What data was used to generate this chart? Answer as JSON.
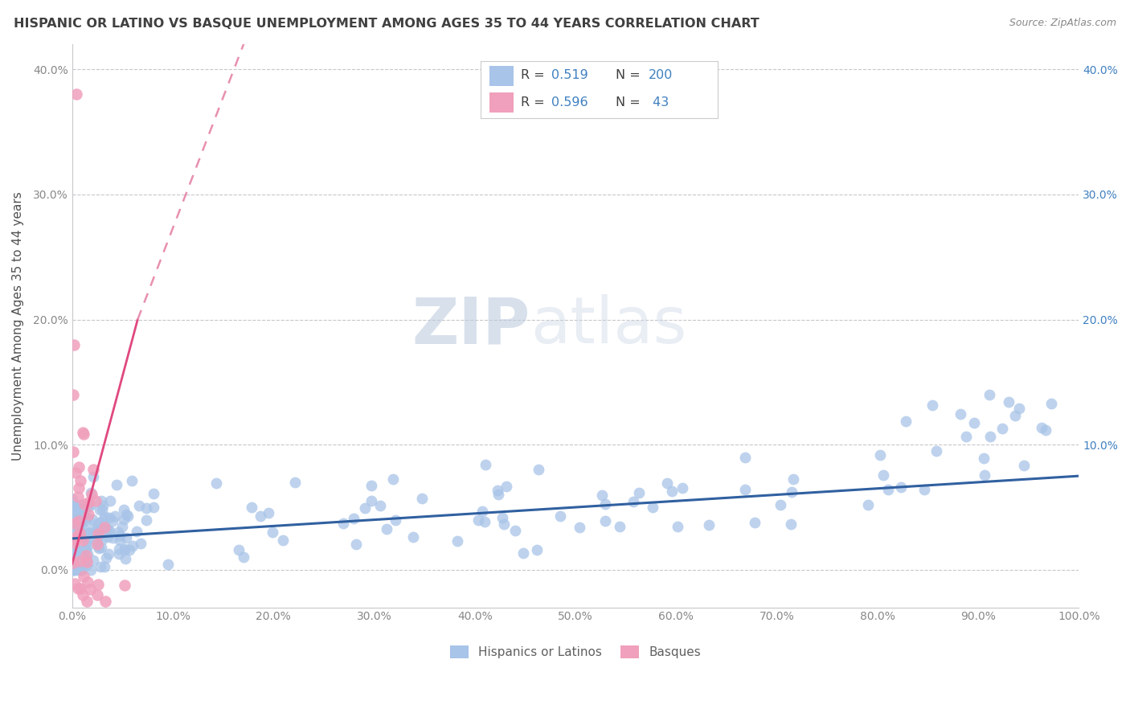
{
  "title": "HISPANIC OR LATINO VS BASQUE UNEMPLOYMENT AMONG AGES 35 TO 44 YEARS CORRELATION CHART",
  "source": "Source: ZipAtlas.com",
  "ylabel": "Unemployment Among Ages 35 to 44 years",
  "watermark_zip": "ZIP",
  "watermark_atlas": "atlas",
  "blue_R": 0.519,
  "blue_N": 200,
  "pink_R": 0.596,
  "pink_N": 43,
  "blue_label": "Hispanics or Latinos",
  "pink_label": "Basques",
  "blue_scatter_color": "#a8c4e8",
  "pink_scatter_color": "#f0a0bc",
  "blue_line_color": "#3060a0",
  "pink_line_color": "#e04880",
  "pink_dash_color": "#e890b0",
  "xmin": 0.0,
  "xmax": 1.0,
  "ymin": -0.03,
  "ymax": 0.42,
  "x_ticks": [
    0.0,
    0.1,
    0.2,
    0.3,
    0.4,
    0.5,
    0.6,
    0.7,
    0.8,
    0.9,
    1.0
  ],
  "y_ticks": [
    0.0,
    0.1,
    0.2,
    0.3,
    0.4
  ],
  "grid_color": "#c8c8cc",
  "bg_color": "#ffffff",
  "title_color": "#404040",
  "source_color": "#888888",
  "tick_color": "#888888",
  "right_tick_color": "#4080c0",
  "legend_color": "#4080c0"
}
